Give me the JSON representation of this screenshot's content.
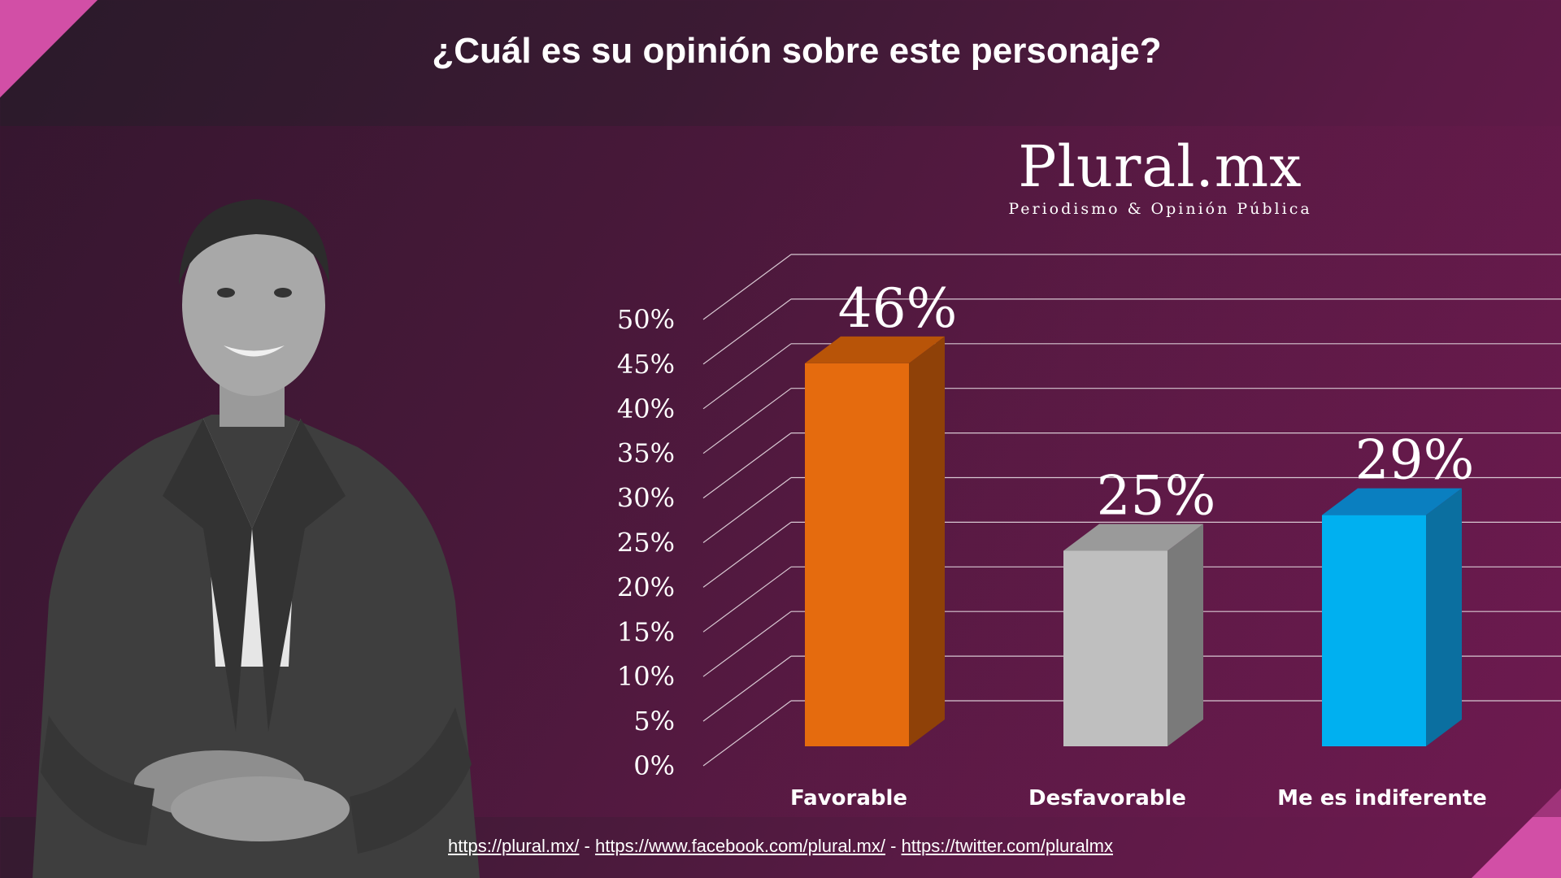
{
  "title": "¿Cuál es su opinión sobre este personaje?",
  "logo": {
    "name": "Plural.mx",
    "tagline": "Periodismo & Opinión Pública"
  },
  "footer": {
    "links": [
      "https://plural.mx/",
      "https://www.facebook.com/plural.mx/",
      "https://twitter.com/pluralmx"
    ],
    "separator": " - "
  },
  "colors": {
    "accent": "#d24fa6"
  },
  "chart_data": {
    "type": "bar",
    "categories": [
      "Favorable",
      "Desfavorable",
      "Me es indiferente"
    ],
    "values": [
      46,
      25,
      29
    ],
    "value_labels": [
      "46%",
      "25%",
      "29%"
    ],
    "colors": [
      "#e56b0e",
      "#bfbfbf",
      "#00b0f0"
    ],
    "side_colors": [
      "#8f4108",
      "#7a7a7a",
      "#0b6fa0"
    ],
    "top_colors": [
      "#b85408",
      "#9a9a9a",
      "#0a7fc0"
    ],
    "ylim": [
      0,
      50
    ],
    "yticks": [
      "0%",
      "5%",
      "10%",
      "15%",
      "20%",
      "25%",
      "30%",
      "35%",
      "40%",
      "45%",
      "50%"
    ],
    "grid": true,
    "style": "3d"
  }
}
